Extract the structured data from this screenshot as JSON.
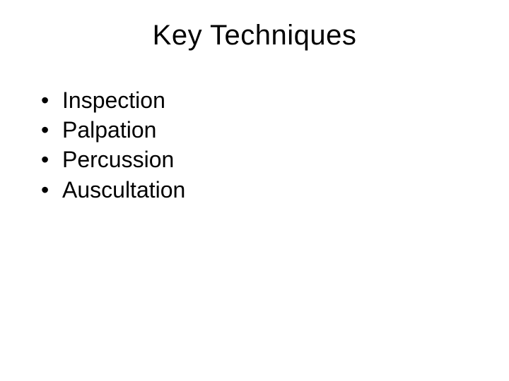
{
  "slide": {
    "title": "Key Techniques",
    "title_fontsize": 40,
    "title_color": "#000000",
    "background_color": "#ffffff",
    "bullet_fontsize": 32,
    "bullet_color": "#000000",
    "bullet_marker": "•",
    "bullets": [
      {
        "text": "Inspection"
      },
      {
        "text": "Palpation"
      },
      {
        "text": "Percussion"
      },
      {
        "text": "Auscultation"
      }
    ]
  }
}
